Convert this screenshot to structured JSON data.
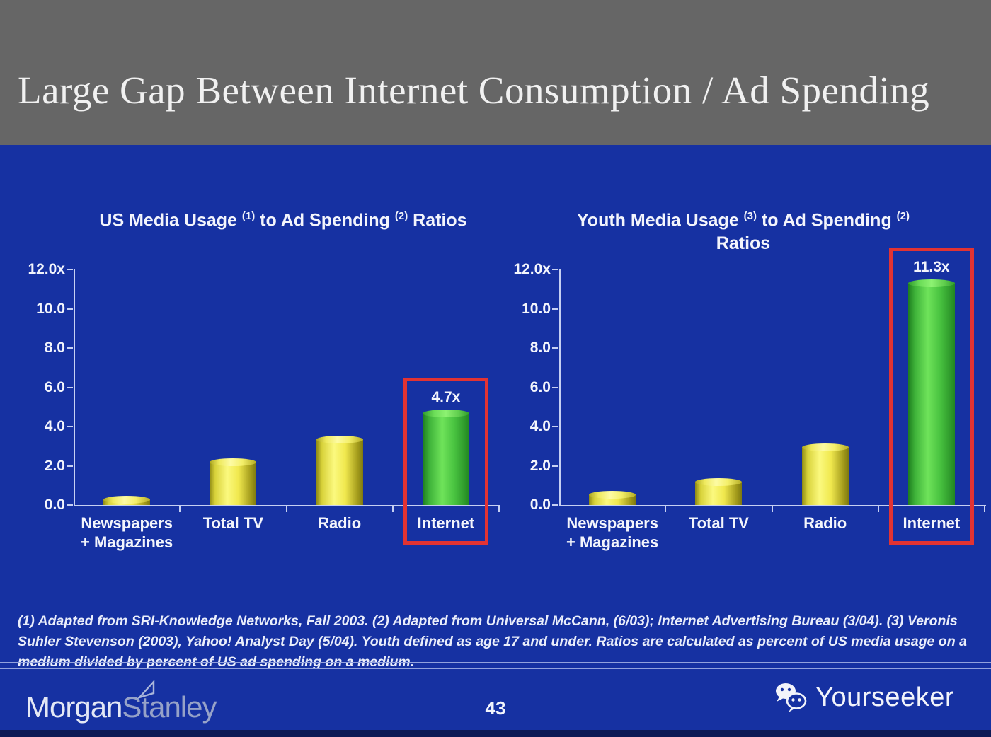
{
  "slide": {
    "title": "Large Gap Between Internet Consumption / Ad Spending",
    "page_number": "43",
    "footnote": "(1) Adapted from SRI-Knowledge Networks, Fall 2003.  (2) Adapted from Universal McCann, (6/03); Internet Advertising Bureau (3/04). (3) Veronis Suhler Stevenson (2003), Yahoo! Analyst Day (5/04).  Youth defined as age 17 and under.  Ratios are calculated as percent of US media usage on a medium divided by percent of US ad spending on a medium.",
    "brand": {
      "part1": "Morgan",
      "part2": "Stanley"
    },
    "watermark": {
      "label": "Yourseeker"
    }
  },
  "colors": {
    "header_gray": "#666666",
    "background_blue": "#1631a2",
    "axis_light": "#c6d0f2",
    "bar_yellow": "#f0e84e",
    "bar_green": "#4fc840",
    "highlight_red": "#e23333",
    "separator": "#93a2dd",
    "bottom_strip": "#0c1a55"
  },
  "chart_data": [
    {
      "type": "bar",
      "title": "US Media Usage (1) to Ad Spending (2) Ratios",
      "title_lines": [
        [
          {
            "text": "US Media Usage "
          },
          {
            "text": "(1)",
            "sup": true
          },
          {
            "text": " to Ad Spending "
          },
          {
            "text": "(2)",
            "sup": true
          },
          {
            "text": " Ratios"
          }
        ]
      ],
      "categories": [
        "Newspapers + Magazines",
        "Total TV",
        "Radio",
        "Internet"
      ],
      "category_lines": [
        [
          "Newspapers",
          "+ Magazines"
        ],
        [
          "Total TV"
        ],
        [
          "Radio"
        ],
        [
          "Internet"
        ]
      ],
      "values": [
        0.3,
        2.2,
        3.35,
        4.7
      ],
      "bar_colors": [
        "yellow",
        "yellow",
        "yellow",
        "green"
      ],
      "value_labels": {
        "3": "4.7x"
      },
      "highlight_index": 3,
      "y_ticks": [
        {
          "value": 12,
          "label": "12.0x"
        },
        {
          "value": 10,
          "label": "10.0"
        },
        {
          "value": 8,
          "label": "8.0"
        },
        {
          "value": 6,
          "label": "6.0"
        },
        {
          "value": 4,
          "label": "4.0"
        },
        {
          "value": 2,
          "label": "2.0"
        },
        {
          "value": 0,
          "label": "0.0"
        }
      ],
      "ylim": [
        0,
        12
      ],
      "xlabel": "",
      "ylabel": "",
      "grid": false,
      "legend": null
    },
    {
      "type": "bar",
      "title": "Youth Media Usage (3) to Ad Spending (2) Ratios",
      "title_lines": [
        [
          {
            "text": "Youth Media Usage "
          },
          {
            "text": "(3)",
            "sup": true
          },
          {
            "text": " to Ad Spending "
          },
          {
            "text": "(2)",
            "sup": true
          }
        ],
        [
          {
            "text": "Ratios"
          }
        ]
      ],
      "categories": [
        "Newspapers + Magazines",
        "Total TV",
        "Radio",
        "Internet"
      ],
      "category_lines": [
        [
          "Newspapers",
          "+ Magazines"
        ],
        [
          "Total TV"
        ],
        [
          "Radio"
        ],
        [
          "Internet"
        ]
      ],
      "values": [
        0.55,
        1.2,
        2.95,
        11.3
      ],
      "bar_colors": [
        "yellow",
        "yellow",
        "yellow",
        "green"
      ],
      "value_labels": {
        "3": "11.3x"
      },
      "highlight_index": 3,
      "y_ticks": [
        {
          "value": 12,
          "label": "12.0x"
        },
        {
          "value": 10,
          "label": "10.0"
        },
        {
          "value": 8,
          "label": "8.0"
        },
        {
          "value": 6,
          "label": "6.0"
        },
        {
          "value": 4,
          "label": "4.0"
        },
        {
          "value": 2,
          "label": "2.0"
        },
        {
          "value": 0,
          "label": "0.0"
        }
      ],
      "ylim": [
        0,
        12
      ],
      "xlabel": "",
      "ylabel": "",
      "grid": false,
      "legend": null
    }
  ]
}
